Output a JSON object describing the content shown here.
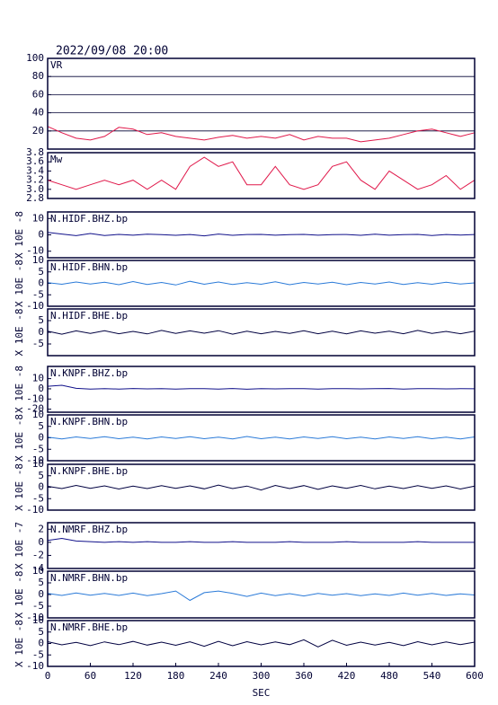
{
  "title": "2022/09/08 20:00",
  "chart_data": [
    {
      "type": "line",
      "title": "VR",
      "color": "#e0184a",
      "grid": true,
      "x": [
        0,
        20,
        40,
        60,
        80,
        100,
        120,
        140,
        160,
        180,
        200,
        220,
        240,
        260,
        280,
        300,
        320,
        340,
        360,
        380,
        400,
        420,
        440,
        460,
        480,
        500,
        520,
        540,
        560,
        580,
        600
      ],
      "values": [
        25,
        18,
        12,
        10,
        14,
        24,
        22,
        16,
        18,
        14,
        12,
        10,
        13,
        15,
        12,
        14,
        12,
        16,
        10,
        14,
        12,
        12,
        8,
        10,
        12,
        16,
        20,
        22,
        18,
        14,
        18
      ],
      "ylim": [
        0,
        100
      ],
      "yticks": [
        20,
        40,
        60,
        80,
        100
      ]
    },
    {
      "type": "line",
      "title": "Mw",
      "color": "#e0184a",
      "grid": false,
      "x": [
        0,
        20,
        40,
        60,
        80,
        100,
        120,
        140,
        160,
        180,
        200,
        220,
        240,
        260,
        280,
        300,
        320,
        340,
        360,
        380,
        400,
        420,
        440,
        460,
        480,
        500,
        520,
        540,
        560,
        580,
        600
      ],
      "values": [
        3.2,
        3.1,
        3.0,
        3.1,
        3.2,
        3.1,
        3.2,
        3.0,
        3.2,
        3.0,
        3.5,
        3.7,
        3.5,
        3.6,
        3.1,
        3.1,
        3.5,
        3.1,
        3.0,
        3.1,
        3.5,
        3.6,
        3.2,
        3.0,
        3.4,
        3.2,
        3.0,
        3.1,
        3.3,
        3.0,
        3.2
      ],
      "ylim": [
        2.8,
        3.8
      ],
      "yticks": [
        2.8,
        {
          "value": 3.0,
          "label": "3.0"
        },
        3.2,
        3.4,
        3.6,
        3.8
      ]
    },
    {
      "type": "line",
      "title": "N.HIDF.BHZ.bp",
      "ylabel": "X 10E -8",
      "color": "#10108a",
      "grid": false,
      "x": [
        0,
        20,
        40,
        60,
        80,
        100,
        120,
        140,
        160,
        180,
        200,
        220,
        240,
        260,
        280,
        300,
        320,
        340,
        360,
        380,
        400,
        420,
        440,
        460,
        480,
        500,
        520,
        540,
        560,
        580,
        600
      ],
      "values": [
        1.5,
        0.5,
        -0.5,
        0.8,
        -0.4,
        0.3,
        -0.2,
        0.4,
        0.1,
        -0.3,
        0.2,
        -0.6,
        0.5,
        -0.3,
        0.2,
        0.3,
        -0.2,
        0.1,
        0.3,
        -0.2,
        0.1,
        0.2,
        -0.3,
        0.4,
        -0.2,
        0.1,
        0.3,
        -0.4,
        0.2,
        -0.1,
        0.2
      ],
      "ylim": [
        -14,
        14
      ],
      "yticks": [
        -10,
        0,
        10
      ]
    },
    {
      "type": "line",
      "title": "N.HIDF.BHN.bp",
      "ylabel": "X 10E -8",
      "color": "#2a7ad8",
      "grid": false,
      "x": [
        0,
        20,
        40,
        60,
        80,
        100,
        120,
        140,
        160,
        180,
        200,
        220,
        240,
        260,
        280,
        300,
        320,
        340,
        360,
        380,
        400,
        420,
        440,
        460,
        480,
        500,
        520,
        540,
        560,
        580,
        600
      ],
      "values": [
        0.3,
        -0.4,
        0.6,
        -0.3,
        0.5,
        -0.6,
        0.8,
        -0.5,
        0.4,
        -0.7,
        0.9,
        -0.4,
        0.6,
        -0.5,
        0.3,
        -0.4,
        0.7,
        -0.6,
        0.4,
        -0.3,
        0.5,
        -0.6,
        0.4,
        -0.3,
        0.6,
        -0.5,
        0.3,
        -0.4,
        0.5,
        -0.3,
        0.2
      ],
      "ylim": [
        -10,
        10
      ],
      "yticks": [
        -10,
        -5,
        0,
        5,
        10
      ]
    },
    {
      "type": "line",
      "title": "N.HIDF.BHE.bp",
      "ylabel": "X 10E -8",
      "color": "#000040",
      "grid": false,
      "x": [
        0,
        20,
        40,
        60,
        80,
        100,
        120,
        140,
        160,
        180,
        200,
        220,
        240,
        260,
        280,
        300,
        320,
        340,
        360,
        380,
        400,
        420,
        440,
        460,
        480,
        500,
        520,
        540,
        560,
        580,
        600
      ],
      "values": [
        0.5,
        -0.8,
        0.6,
        -0.5,
        0.7,
        -0.6,
        0.4,
        -0.7,
        0.8,
        -0.5,
        0.6,
        -0.4,
        0.7,
        -0.8,
        0.5,
        -0.6,
        0.4,
        -0.5,
        0.7,
        -0.6,
        0.5,
        -0.7,
        0.6,
        -0.4,
        0.5,
        -0.6,
        0.8,
        -0.5,
        0.4,
        -0.6,
        0.5
      ],
      "ylim": [
        -10,
        10
      ],
      "yticks": [
        -5,
        0,
        5
      ]
    },
    {
      "type": "line",
      "title": "N.KNPF.BHZ.bp",
      "ylabel": "X 10E -8",
      "color": "#10108a",
      "grid": false,
      "x": [
        0,
        20,
        40,
        60,
        80,
        100,
        120,
        140,
        160,
        180,
        200,
        220,
        240,
        260,
        280,
        300,
        320,
        340,
        360,
        380,
        400,
        420,
        440,
        460,
        480,
        500,
        520,
        540,
        560,
        580,
        600
      ],
      "values": [
        2.5,
        3.5,
        0.5,
        -0.3,
        0.2,
        -0.2,
        0.3,
        -0.1,
        0.2,
        -0.3,
        0.1,
        0.2,
        -0.2,
        0.3,
        -0.4,
        0.2,
        -0.1,
        0.2,
        0.1,
        -0.2,
        0.1,
        0.2,
        -0.1,
        0.1,
        0.3,
        -0.2,
        0.1,
        0.2,
        -0.1,
        0.1,
        0.0
      ],
      "ylim": [
        -23,
        22
      ],
      "yticks": [
        -20,
        -10,
        0,
        10
      ]
    },
    {
      "type": "line",
      "title": "N.KNPF.BHN.bp",
      "ylabel": "X 10E -8",
      "color": "#2a7ad8",
      "grid": false,
      "x": [
        0,
        20,
        40,
        60,
        80,
        100,
        120,
        140,
        160,
        180,
        200,
        220,
        240,
        260,
        280,
        300,
        320,
        340,
        360,
        380,
        400,
        420,
        440,
        460,
        480,
        500,
        520,
        540,
        560,
        580,
        600
      ],
      "values": [
        0.3,
        -0.5,
        0.4,
        -0.3,
        0.5,
        -0.4,
        0.3,
        -0.5,
        0.4,
        -0.3,
        0.5,
        -0.4,
        0.3,
        -0.5,
        0.6,
        -0.4,
        0.3,
        -0.5,
        0.4,
        -0.3,
        0.5,
        -0.4,
        0.3,
        -0.5,
        0.4,
        -0.3,
        0.5,
        -0.4,
        0.3,
        -0.5,
        0.4
      ],
      "ylim": [
        -10,
        10
      ],
      "yticks": [
        -10,
        -5,
        0,
        5,
        10
      ]
    },
    {
      "type": "line",
      "title": "N.KNPF.BHE.bp",
      "ylabel": "X 10E -8",
      "color": "#000040",
      "grid": false,
      "x": [
        0,
        20,
        40,
        60,
        80,
        100,
        120,
        140,
        160,
        180,
        200,
        220,
        240,
        260,
        280,
        300,
        320,
        340,
        360,
        380,
        400,
        420,
        440,
        460,
        480,
        500,
        520,
        540,
        560,
        580,
        600
      ],
      "values": [
        0.4,
        -0.6,
        0.8,
        -0.5,
        0.6,
        -0.8,
        0.5,
        -0.6,
        0.7,
        -0.5,
        0.6,
        -0.7,
        0.9,
        -0.6,
        0.5,
        -1.2,
        0.8,
        -0.6,
        0.7,
        -0.9,
        0.6,
        -0.5,
        0.8,
        -0.7,
        0.5,
        -0.6,
        0.7,
        -0.5,
        0.6,
        -0.8,
        0.5
      ],
      "ylim": [
        -10,
        10
      ],
      "yticks": [
        -10,
        -5,
        0,
        5,
        10
      ]
    },
    {
      "type": "line",
      "title": "N.NMRF.BHZ.bp",
      "ylabel": "X 10E -7",
      "color": "#10108a",
      "grid": false,
      "x": [
        0,
        20,
        40,
        60,
        80,
        100,
        120,
        140,
        160,
        180,
        200,
        220,
        240,
        260,
        280,
        300,
        320,
        340,
        360,
        380,
        400,
        420,
        440,
        460,
        480,
        500,
        520,
        540,
        560,
        580,
        600
      ],
      "values": [
        0.3,
        0.6,
        0.2,
        0.1,
        0.0,
        0.1,
        0.0,
        0.1,
        0.0,
        0.0,
        0.1,
        0.0,
        0.0,
        0.1,
        0.0,
        0.0,
        0.0,
        0.1,
        0.0,
        0.0,
        0.0,
        0.1,
        0.0,
        0.0,
        0.0,
        0.0,
        0.1,
        0.0,
        0.0,
        0.0,
        0.0
      ],
      "ylim": [
        -4,
        3
      ],
      "yticks": [
        -4,
        -2,
        0,
        2
      ]
    },
    {
      "type": "line",
      "title": "N.NMRF.BHN.bp",
      "ylabel": "X 10E -8",
      "color": "#2a7ad8",
      "grid": false,
      "x": [
        0,
        20,
        40,
        60,
        80,
        100,
        120,
        140,
        160,
        180,
        200,
        220,
        240,
        260,
        280,
        300,
        320,
        340,
        360,
        380,
        400,
        420,
        440,
        460,
        480,
        500,
        520,
        540,
        560,
        580,
        600
      ],
      "values": [
        0.5,
        -0.4,
        0.7,
        -0.3,
        0.5,
        -0.4,
        0.6,
        -0.5,
        0.4,
        1.5,
        -2.5,
        0.8,
        1.5,
        0.5,
        -0.8,
        0.6,
        -0.5,
        0.4,
        -0.6,
        0.5,
        -0.3,
        0.4,
        -0.5,
        0.3,
        -0.4,
        0.6,
        -0.3,
        0.5,
        -0.4,
        0.3,
        -0.2
      ],
      "ylim": [
        -10,
        10
      ],
      "yticks": [
        -10,
        -5,
        0,
        5,
        10
      ]
    },
    {
      "type": "line",
      "title": "N.NMRF.BHE.bp",
      "ylabel": "X 10E -8",
      "color": "#000040",
      "grid": false,
      "x": [
        0,
        20,
        40,
        60,
        80,
        100,
        120,
        140,
        160,
        180,
        200,
        220,
        240,
        260,
        280,
        300,
        320,
        340,
        360,
        380,
        400,
        420,
        440,
        460,
        480,
        500,
        520,
        540,
        560,
        580,
        600
      ],
      "values": [
        0.8,
        -0.6,
        0.5,
        -0.9,
        0.7,
        -0.5,
        0.9,
        -0.7,
        0.6,
        -0.8,
        0.7,
        -1.2,
        0.9,
        -1.0,
        0.8,
        -0.6,
        0.7,
        -0.5,
        1.6,
        -1.5,
        1.4,
        -0.8,
        0.6,
        -0.7,
        0.5,
        -0.9,
        0.8,
        -0.6,
        0.7,
        -0.5,
        0.6
      ],
      "ylim": [
        -10,
        10
      ],
      "yticks": [
        -10,
        -5,
        0,
        5,
        10
      ],
      "xlabel": "SEC",
      "xlim": [
        0,
        600
      ],
      "xticks": [
        0,
        60,
        120,
        180,
        240,
        300,
        360,
        420,
        480,
        540,
        600
      ]
    }
  ]
}
